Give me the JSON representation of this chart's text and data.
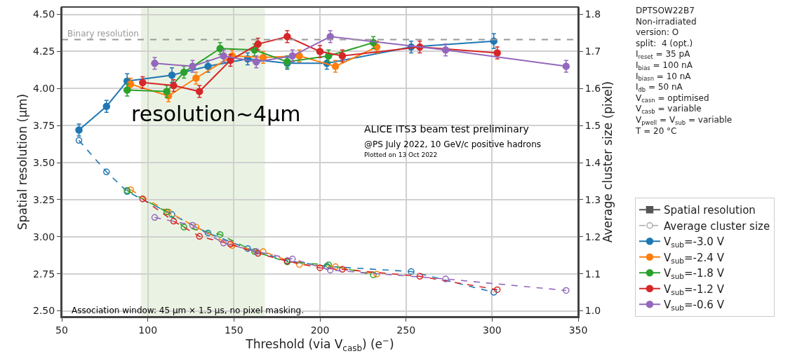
{
  "chart_data": {
    "type": "line",
    "xlabel": "Threshold (via V$_{casb}$) (e$^{−}$)",
    "ylabel": "Spatial resolution (μm)",
    "y2label": "Average cluster size (pixel)",
    "xlim": [
      50,
      350
    ],
    "xticks": [
      50,
      100,
      150,
      200,
      250,
      300,
      350
    ],
    "ylim": [
      2.46,
      4.55
    ],
    "yticks": [
      {
        "value": 2.5,
        "label": "2.50"
      },
      {
        "value": 2.75,
        "label": "2.75"
      },
      {
        "value": 3.0,
        "label": "3.00"
      },
      {
        "value": 3.25,
        "label": "3.25"
      },
      {
        "value": 3.5,
        "label": "3.50"
      },
      {
        "value": 3.75,
        "label": "3.75"
      },
      {
        "value": 4.0,
        "label": "4.00"
      },
      {
        "value": 4.25,
        "label": "4.25"
      },
      {
        "value": 4.5,
        "label": "4.50"
      }
    ],
    "y2lim": [
      0.984,
      1.82
    ],
    "y2ticks": [
      {
        "value": 1.0,
        "label": "1.0"
      },
      1.1,
      1.2,
      1.3,
      1.4,
      1.5,
      1.6,
      1.7,
      1.8
    ],
    "grid": true,
    "legend": "bottom right",
    "series": [
      {
        "name": "Spatial resolution",
        "color": "#555555",
        "marker": "square",
        "line_style": "solid"
      },
      {
        "name": "Average cluster size",
        "color": "#aaaaaa",
        "marker": "circle",
        "line_style": "dashed",
        "axis": "y2"
      },
      {
        "name": "V$_{sub}$=-3.0 V",
        "color": "#1f77b4",
        "marker": "circle",
        "line_style": "solid",
        "x": [
          60,
          76,
          88,
          114,
          135,
          158,
          181,
          204,
          253,
          301
        ],
        "values": [
          3.72,
          3.88,
          4.05,
          4.09,
          4.15,
          4.2,
          4.17,
          4.17,
          4.28,
          4.32
        ],
        "errors": [
          0.04,
          0.04,
          0.05,
          0.05,
          0.04,
          0.04,
          0.04,
          0.04,
          0.04,
          0.05
        ]
      },
      {
        "name": "V$_{sub}$=-2.4 V",
        "color": "#ff7f0e",
        "marker": "circle",
        "line_style": "solid",
        "x": [
          90,
          112,
          128,
          149,
          167,
          188,
          209,
          233
        ],
        "values": [
          4.03,
          3.95,
          4.07,
          4.22,
          4.21,
          4.22,
          4.15,
          4.28
        ],
        "errors": [
          0.04,
          0.04,
          0.04,
          0.04,
          0.04,
          0.04,
          0.04,
          0.04
        ]
      },
      {
        "name": "V$_{sub}$=-1.8 V",
        "color": "#2ca02c",
        "marker": "circle",
        "line_style": "solid",
        "x": [
          88,
          111,
          121,
          142,
          162,
          181,
          205,
          231
        ],
        "values": [
          3.99,
          3.98,
          4.11,
          4.27,
          4.26,
          4.18,
          4.22,
          4.31
        ],
        "errors": [
          0.04,
          0.04,
          0.04,
          0.04,
          0.04,
          0.04,
          0.04,
          0.04
        ]
      },
      {
        "name": "V$_{sub}$=-1.2 V",
        "color": "#d62728",
        "marker": "circle",
        "line_style": "solid",
        "x": [
          97,
          115,
          130,
          148,
          164,
          181,
          200,
          213,
          258,
          303
        ],
        "values": [
          4.04,
          4.02,
          3.98,
          4.19,
          4.3,
          4.35,
          4.25,
          4.22,
          4.28,
          4.24
        ],
        "errors": [
          0.04,
          0.04,
          0.04,
          0.04,
          0.04,
          0.04,
          0.04,
          0.04,
          0.04,
          0.04
        ]
      },
      {
        "name": "V$_{sub}$=-0.6 V",
        "color": "#9467bd",
        "marker": "circle",
        "line_style": "solid",
        "x": [
          104,
          126,
          144,
          163,
          184,
          206,
          273,
          343
        ],
        "values": [
          4.17,
          4.15,
          4.22,
          4.18,
          4.22,
          4.35,
          4.26,
          4.15
        ],
        "errors": [
          0.04,
          0.04,
          0.04,
          0.04,
          0.04,
          0.04,
          0.04,
          0.04
        ]
      },
      {
        "color": "#1f77b4",
        "marker": "circle",
        "line_style": "dashed",
        "axis": "y2",
        "x": [
          60,
          76,
          88,
          114,
          135,
          158,
          181,
          204,
          253,
          301
        ],
        "values": [
          1.46,
          1.375,
          1.322,
          1.26,
          1.21,
          1.168,
          1.135,
          1.12,
          1.106,
          1.05
        ]
      },
      {
        "color": "#ff7f0e",
        "marker": "circle",
        "line_style": "dashed",
        "axis": "y2",
        "x": [
          90,
          112,
          128,
          149,
          167,
          188,
          209,
          233
        ],
        "values": [
          1.327,
          1.267,
          1.226,
          1.176,
          1.16,
          1.125,
          1.119,
          1.099
        ]
      },
      {
        "color": "#2ca02c",
        "marker": "circle",
        "line_style": "dashed",
        "axis": "y2",
        "x": [
          88,
          111,
          121,
          142,
          162,
          181,
          205,
          231
        ],
        "values": [
          1.325,
          1.267,
          1.226,
          1.206,
          1.16,
          1.132,
          1.124,
          1.097
        ]
      },
      {
        "color": "#d62728",
        "marker": "circle",
        "line_style": "dashed",
        "axis": "y2",
        "x": [
          97,
          115,
          130,
          148,
          164,
          181,
          200,
          213,
          258,
          303
        ],
        "values": [
          1.302,
          1.242,
          1.201,
          1.18,
          1.155,
          1.134,
          1.116,
          1.112,
          1.093,
          1.057
        ]
      },
      {
        "color": "#9467bd",
        "marker": "circle",
        "line_style": "dashed",
        "axis": "y2",
        "x": [
          104,
          126,
          144,
          163,
          184,
          206,
          273,
          343
        ],
        "values": [
          1.252,
          1.231,
          1.183,
          1.16,
          1.14,
          1.11,
          1.086,
          1.055
        ]
      }
    ],
    "ref_lines": [
      {
        "axis": "y",
        "value": 4.33,
        "label": "Binary resolution",
        "color": "#999999",
        "line_style": "dashed"
      }
    ],
    "bands": [
      {
        "axis": "x",
        "from": 96,
        "to": 168,
        "color": "#eaf3e3"
      }
    ],
    "annotations": [
      "resolution~4μm",
      "ALICE ITS3 beam test preliminary",
      "@PS July 2022, 10 GeV/c positive hadrons",
      "Plotted on 13 Oct 2022",
      "Association window: 45 μm × 1.5 μs, no pixel masking.",
      "DPTSOW22B7\nNon-irradiated\nversion: O\nsplit:  4 (opt.)\nI$_{reset}$ = 35 pA\nI$_{bias}$ = 100 nA\nI$_{biasn}$ = 10 nA\nI$_{db}$ = 50 nA\nV$_{casn}$ = optimised\nV$_{casb}$ = variable\nV$_{pwell}$ = V$_{sub}$ = variable\nT = 20 °C"
    ]
  }
}
